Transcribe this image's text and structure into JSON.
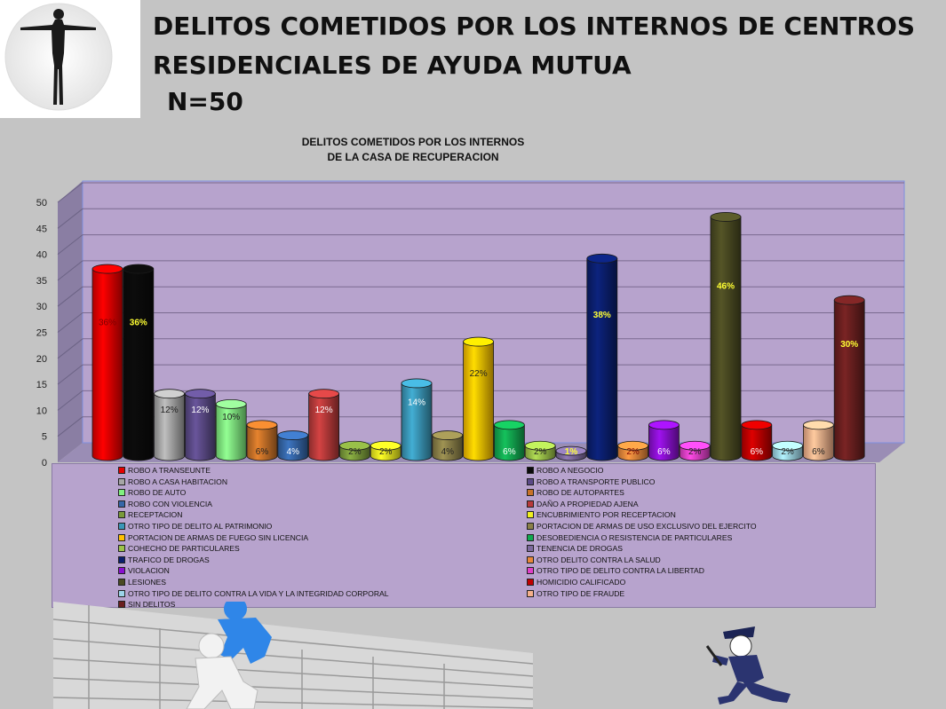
{
  "slide": {
    "title_line1": "DELITOS COMETIDOS  POR LOS INTERNOS DE  CENTROS",
    "title_line2": "RESIDENCIALES DE AYUDA MUTUA",
    "sample_size": "N=50"
  },
  "images": {
    "logo_icon": "human-figure-icon",
    "bottom_left": "figures-climbing-wall-icon",
    "bottom_right": "police-officer-running-icon"
  },
  "chart_data": {
    "type": "bar",
    "title_line1": "DELITOS COMETIDOS POR LOS INTERNOS",
    "title_line2": "DE LA CASA DE RECUPERACION",
    "ylim": [
      0,
      50
    ],
    "yticks": [
      0,
      5,
      10,
      15,
      20,
      25,
      30,
      35,
      40,
      45,
      50
    ],
    "grid": true,
    "plot_background": "#b7a3cd",
    "legend_placement": "bottom",
    "series": [
      {
        "name": "ROBO A TRANSEUNTE",
        "value": 36,
        "label": "36%",
        "color": "#e60000",
        "label_color": "#7a0000"
      },
      {
        "name": "ROBO A NEGOCIO",
        "value": 36,
        "label": "36%",
        "color": "#0a0a0a",
        "label_color": "#ffff33"
      },
      {
        "name": "ROBO A CASA HABITACION",
        "value": 12,
        "label": "12%",
        "color": "#a6a6a6",
        "label_color": "#222222"
      },
      {
        "name": "ROBO A TRANSPORTE PUBLICO",
        "value": 12,
        "label": "12%",
        "color": "#5b4a87",
        "label_color": "#ffffff"
      },
      {
        "name": "ROBO DE AUTO",
        "value": 10,
        "label": "10%",
        "color": "#80f080",
        "label_color": "#222222"
      },
      {
        "name": "ROBO DE AUTOPARTES",
        "value": 6,
        "label": "6%",
        "color": "#c87228",
        "label_color": "#222222"
      },
      {
        "name": "ROBO CON VIOLENCIA",
        "value": 4,
        "label": "4%",
        "color": "#3566a8",
        "label_color": "#ffffff"
      },
      {
        "name": "DAÑO A PROPIEDAD AJENA",
        "value": 12,
        "label": "12%",
        "color": "#b83a3a",
        "label_color": "#ffffff"
      },
      {
        "name": "RECEPTACION",
        "value": 2,
        "label": "2%",
        "color": "#7a9a3a",
        "label_color": "#222222"
      },
      {
        "name": "ENCUBRIMIENTO POR RECEPTACION",
        "value": 2,
        "label": "2%",
        "color": "#f0f020",
        "label_color": "#222222"
      },
      {
        "name": "OTRO TIPO DE DELITO AL PATRIMONIO",
        "value": 14,
        "label": "14%",
        "color": "#3a97b8",
        "label_color": "#ffffff"
      },
      {
        "name": "PORTACION DE ARMAS DE USO EXCLUSIVO DEL EJERCITO",
        "value": 4,
        "label": "4%",
        "color": "#8a8048",
        "label_color": "#222222"
      },
      {
        "name": "PORTACION DE ARMAS DE FUEGO SIN LICENCIA",
        "value": 22,
        "label": "22%",
        "color": "#ffc000",
        "label_color": "#222222"
      },
      {
        "name": "DESOBEDIENCIA O RESISTENCIA DE PARTICULARES",
        "value": 6,
        "label": "6%",
        "color": "#12a850",
        "label_color": "#ffffff"
      },
      {
        "name": "COHECHO DE PARTICULARES",
        "value": 2,
        "label": "2%",
        "color": "#9cc24a",
        "label_color": "#222222"
      },
      {
        "name": "TENENCIA DE DROGAS",
        "value": 1,
        "label": "1%",
        "color": "#7d6a9d",
        "label_color": "#ffff33"
      },
      {
        "name": "TRAFICO DE DROGAS",
        "value": 38,
        "label": "38%",
        "color": "#0a1e6e",
        "label_color": "#ffff33"
      },
      {
        "name": "OTRO DELITO CONTRA LA SALUD",
        "value": 2,
        "label": "2%",
        "color": "#e8873a",
        "label_color": "#7a0000"
      },
      {
        "name": "VIOLACION",
        "value": 6,
        "label": "6%",
        "color": "#8a10d0",
        "label_color": "#ffffff"
      },
      {
        "name": "OTRO TIPO DE DELITO CONTRA LA LIBERTAD",
        "value": 2,
        "label": "2%",
        "color": "#e040c8",
        "label_color": "#222222"
      },
      {
        "name": "LESIONES",
        "value": 46,
        "label": "46%",
        "color": "#4a4a22",
        "label_color": "#ffff33"
      },
      {
        "name": "HOMICIDIO CALIFICADO",
        "value": 6,
        "label": "6%",
        "color": "#c00000",
        "label_color": "#ffffff"
      },
      {
        "name": "OTRO TIPO DE DELITO CONTRA LA VIDA Y LA INTEGRIDAD CORPORAL",
        "value": 2,
        "label": "2%",
        "color": "#9cd4e8",
        "label_color": "#222222"
      },
      {
        "name": "OTRO TIPO DE FRAUDE",
        "value": 6,
        "label": "6%",
        "color": "#f5b08a",
        "label_color": "#222222"
      },
      {
        "name": "SIN DELITOS",
        "value": 30,
        "label": "30%",
        "color": "#6a1f1f",
        "label_color": "#ffff33"
      }
    ]
  }
}
